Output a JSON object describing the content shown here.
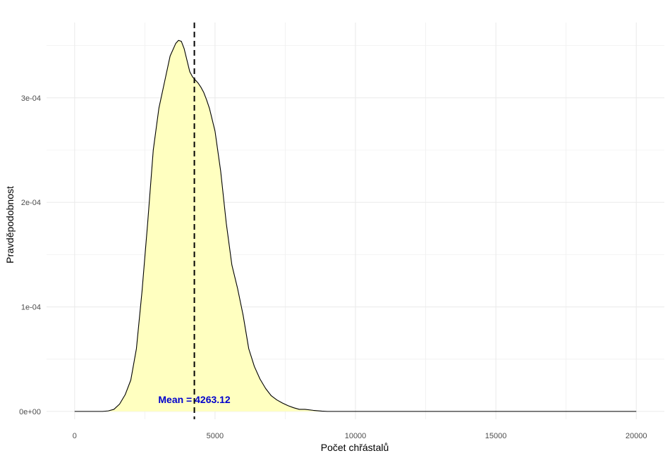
{
  "chart_data": {
    "type": "area",
    "title": "",
    "xlabel": "Počet chřástalů",
    "ylabel": "Pravděpodobnost",
    "xlim": [
      -1000,
      21000
    ],
    "ylim": [
      -7.5e-06,
      0.000372
    ],
    "x_ticks": [
      0,
      5000,
      10000,
      15000,
      20000
    ],
    "x_tick_labels": [
      "0",
      "5000",
      "10000",
      "15000",
      "20000"
    ],
    "y_ticks": [
      0,
      0.0001,
      0.0002,
      0.0003
    ],
    "y_tick_labels": [
      "0e+00",
      "1e-04",
      "2e-04",
      "3e-04"
    ],
    "grid": true,
    "series": [
      {
        "fill_color": "#ffffc0",
        "line_color": "#000000",
        "x": [
          0,
          500,
          1000,
          1200,
          1400,
          1600,
          1800,
          2000,
          2200,
          2400,
          2600,
          2800,
          3000,
          3200,
          3400,
          3600,
          3700,
          3800,
          3900,
          4000,
          4100,
          4200,
          4300,
          4400,
          4500,
          4600,
          4700,
          4800,
          5000,
          5200,
          5400,
          5600,
          5800,
          6000,
          6200,
          6400,
          6600,
          6800,
          7000,
          7200,
          7400,
          7600,
          7800,
          8000,
          8200,
          8500,
          8800,
          9000,
          9500,
          10000,
          15000,
          20000
        ],
        "y": [
          0,
          0,
          0,
          5e-07,
          2e-06,
          7e-06,
          1.6e-05,
          3e-05,
          6e-05,
          0.000115,
          0.00018,
          0.00025,
          0.00029,
          0.000315,
          0.00034,
          0.000352,
          0.000355,
          0.000354,
          0.000347,
          0.000336,
          0.000325,
          0.00032,
          0.000317,
          0.000314,
          0.00031,
          0.000305,
          0.000298,
          0.00029,
          0.000268,
          0.00023,
          0.00018,
          0.00014,
          0.000118,
          9.2e-05,
          6e-05,
          4.3e-05,
          3.1e-05,
          2.2e-05,
          1.5e-05,
          1.1e-05,
          8e-06,
          5.5e-06,
          3.5e-06,
          2e-06,
          2e-06,
          1e-06,
          3e-07,
          0,
          0,
          0,
          0,
          0
        ]
      }
    ],
    "mean": {
      "value": 4263.12,
      "label": "Mean = 4263.12",
      "label_x": 4263.12,
      "label_y": 1.15e-05,
      "line_style": "dashed",
      "label_color": "#0000cc"
    }
  }
}
